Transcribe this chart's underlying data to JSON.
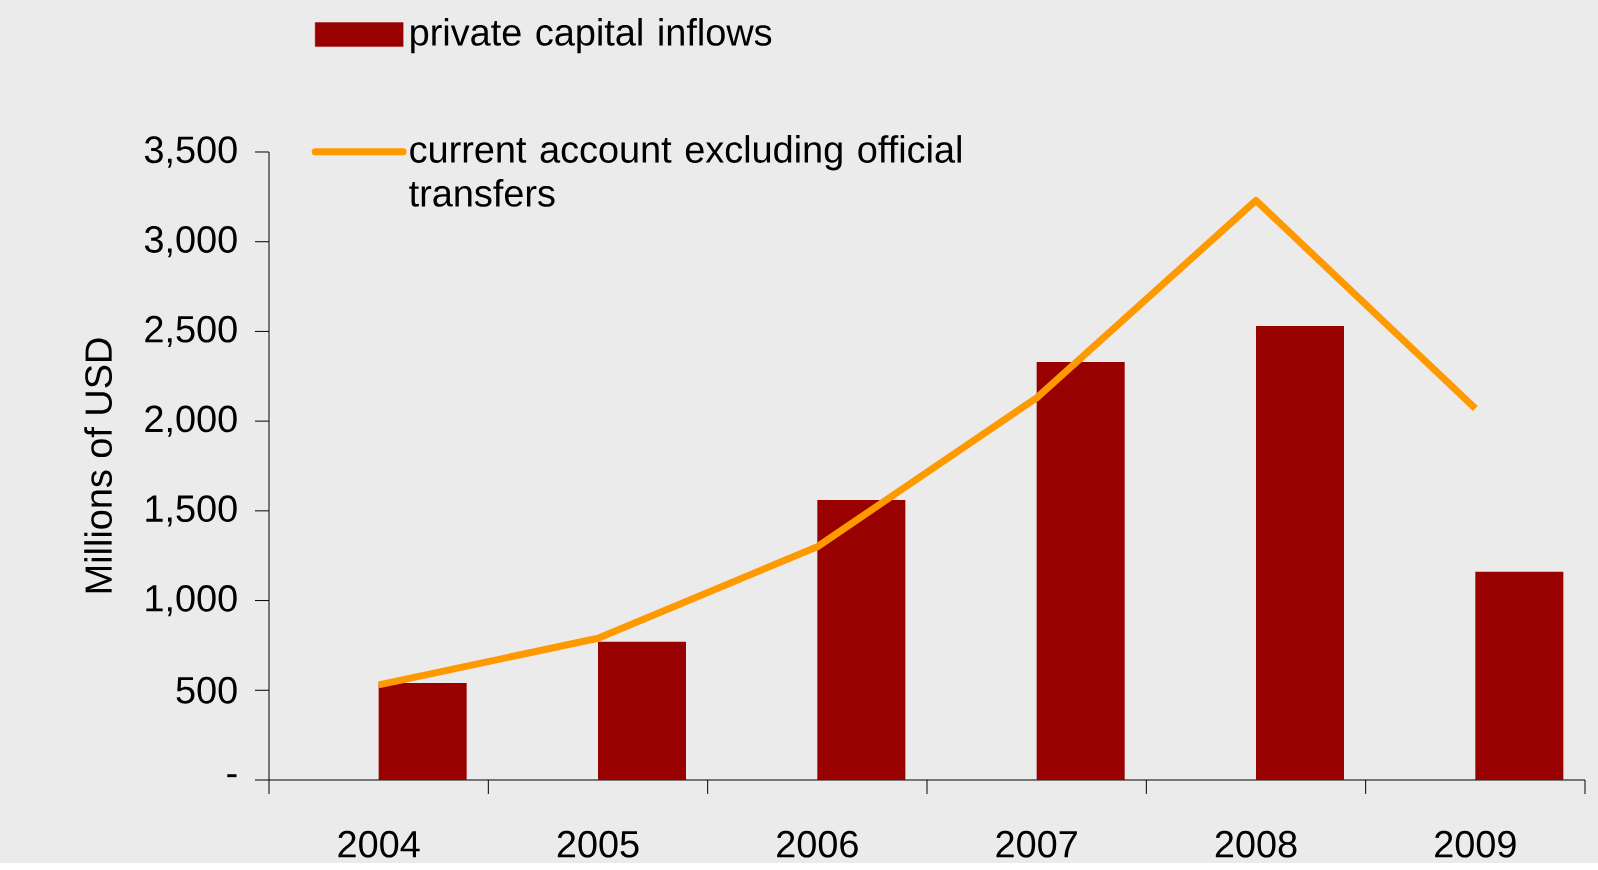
{
  "chart_data": {
    "type": "bar",
    "ylabel": "Millions of USD",
    "categories": [
      "2004",
      "2005",
      "2006",
      "2007",
      "2008",
      "2009"
    ],
    "series": [
      {
        "name": "private capital inflows",
        "color": "#990000",
        "values": [
          540,
          770,
          1560,
          2330,
          2530,
          1160
        ]
      },
      {
        "name": "current account excluding official transfers",
        "type": "line",
        "color": "#ff9900",
        "values": [
          530,
          790,
          1300,
          2130,
          3230,
          2070
        ]
      }
    ],
    "ylim": [
      0,
      3500
    ],
    "yticks": [
      {
        "value": 0,
        "label": "-"
      },
      500,
      {
        "value": 1000,
        "label": "1,000"
      },
      {
        "value": 1500,
        "label": "1,500"
      },
      {
        "value": 2000,
        "label": "2,000"
      },
      {
        "value": 2500,
        "label": "2,500"
      },
      {
        "value": 3000,
        "label": "3,000"
      },
      {
        "value": 3500,
        "label": "3,500"
      }
    ],
    "legend": "top left",
    "marker": "none"
  }
}
